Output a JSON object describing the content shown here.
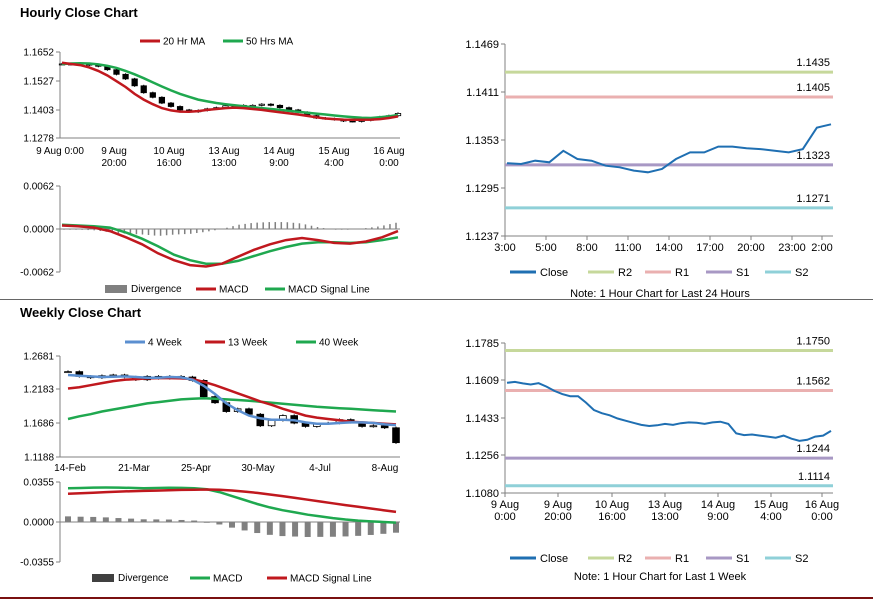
{
  "sections": {
    "hourly_title": "Hourly Close Chart",
    "weekly_title": "Weekly Close Chart"
  },
  "colors": {
    "ma20": "#c0181e",
    "ma50": "#1fa84f",
    "close": "#1f6fb2",
    "r2": "#c6d89b",
    "r1": "#eab0b0",
    "s1": "#a898c4",
    "s2": "#8fd0d8",
    "divergence": "#808080",
    "wk4": "#5b8fd0",
    "wk13": "#c0181e",
    "wk40": "#1fa84f",
    "axis": "#808080"
  },
  "chart_data": [
    {
      "id": "hourly_price",
      "type": "candlestick",
      "legend": [
        "20 Hr MA",
        "50 Hrs MA"
      ],
      "ylim": [
        1.1278,
        1.1652
      ],
      "yticks": [
        "1.1652",
        "1.1527",
        "1.1403",
        "1.1278"
      ],
      "xticks": [
        [
          "9 Aug 0:00",
          ""
        ],
        [
          "9 Aug",
          "20:00"
        ],
        [
          "10 Aug",
          "16:00"
        ],
        [
          "13 Aug",
          "13:00"
        ],
        [
          "14 Aug",
          "9:00"
        ],
        [
          "15 Aug",
          "4:00"
        ],
        [
          "16 Aug",
          "0:00"
        ]
      ],
      "close": [
        1.16,
        1.1598,
        1.1602,
        1.1595,
        1.159,
        1.1575,
        1.1555,
        1.1535,
        1.1505,
        1.1475,
        1.1455,
        1.143,
        1.1415,
        1.14,
        1.1392,
        1.1398,
        1.1405,
        1.141,
        1.1418,
        1.142,
        1.1415,
        1.142,
        1.1425,
        1.142,
        1.141,
        1.14,
        1.139,
        1.1375,
        1.1365,
        1.1362,
        1.1358,
        1.1352,
        1.135,
        1.1355,
        1.1362,
        1.137,
        1.1375,
        1.1385
      ],
      "ma20": [
        1.1605,
        1.16,
        1.1595,
        1.1585,
        1.157,
        1.155,
        1.1525,
        1.15,
        1.147,
        1.1445,
        1.1425,
        1.1408,
        1.1398,
        1.1393,
        1.1392,
        1.1395,
        1.14,
        1.1404,
        1.1408,
        1.141,
        1.1408,
        1.1404,
        1.14,
        1.1395,
        1.139,
        1.1385,
        1.138,
        1.1374,
        1.1368,
        1.1363,
        1.136,
        1.1358,
        1.1357,
        1.1357,
        1.1358,
        1.136,
        1.1365,
        1.1372
      ],
      "ma50": [
        1.16,
        1.1602,
        1.1603,
        1.1602,
        1.1598,
        1.1592,
        1.1583,
        1.157,
        1.1555,
        1.1538,
        1.152,
        1.1502,
        1.1485,
        1.147,
        1.1457,
        1.1445,
        1.1437,
        1.143,
        1.1425,
        1.142,
        1.1416,
        1.1412,
        1.1408,
        1.1404,
        1.14,
        1.1396,
        1.1392,
        1.1388,
        1.1384,
        1.138,
        1.1376,
        1.1372,
        1.1369,
        1.1366,
        1.1365,
        1.1368,
        1.1372,
        1.1378
      ]
    },
    {
      "id": "hourly_macd",
      "type": "line+bar",
      "ylim": [
        -0.0062,
        0.0062
      ],
      "yticks": [
        "0.0062",
        "0.0000",
        "-0.0062"
      ],
      "legend": [
        "Divergence",
        "MACD",
        "MACD Signal Line"
      ],
      "macd": [
        0.0005,
        0.0004,
        0.0002,
        -0.0003,
        -0.0012,
        -0.0022,
        -0.0035,
        -0.0045,
        -0.0052,
        -0.0054,
        -0.005,
        -0.004,
        -0.003,
        -0.0022,
        -0.0016,
        -0.0013,
        -0.0016,
        -0.002,
        -0.0021,
        -0.0018,
        -0.0012,
        -0.0003
      ],
      "signal": [
        0.0006,
        0.0005,
        0.0004,
        0.0002,
        -0.0005,
        -0.0014,
        -0.0025,
        -0.0037,
        -0.0045,
        -0.005,
        -0.005,
        -0.0046,
        -0.0039,
        -0.0032,
        -0.0026,
        -0.0021,
        -0.0019,
        -0.0019,
        -0.002,
        -0.0019,
        -0.0016,
        -0.0012
      ],
      "divergence": [
        -0.0001,
        -0.0001,
        -0.0002,
        -0.0005,
        -0.0007,
        -0.0008,
        -0.001,
        -0.0008,
        -0.0007,
        -0.0004,
        0.0,
        0.0006,
        0.0009,
        0.001,
        0.001,
        0.0008,
        0.0003,
        -0.0001,
        -0.0001,
        0.0001,
        0.0004,
        0.0009
      ]
    },
    {
      "id": "hourly_24h",
      "type": "line",
      "ylim": [
        1.1237,
        1.1469
      ],
      "yticks": [
        "1.1469",
        "1.1411",
        "1.1353",
        "1.1295",
        "1.1237"
      ],
      "xticks": [
        "3:00",
        "5:00",
        "8:00",
        "11:00",
        "14:00",
        "17:00",
        "20:00",
        "23:00",
        "2:00"
      ],
      "levels": {
        "R2": 1.1435,
        "R1": 1.1405,
        "S1": 1.1323,
        "S2": 1.1271
      },
      "level_labels": {
        "R2": "1.1435",
        "R1": "1.1405",
        "S1": "1.1323",
        "S2": "1.1271"
      },
      "close": [
        1.1325,
        1.1324,
        1.1328,
        1.1326,
        1.134,
        1.133,
        1.1328,
        1.1322,
        1.132,
        1.1316,
        1.1314,
        1.1318,
        1.133,
        1.1338,
        1.1338,
        1.1345,
        1.1345,
        1.1343,
        1.1342,
        1.134,
        1.1338,
        1.1342,
        1.1368,
        1.1372
      ],
      "legend": [
        "Close",
        "R2",
        "R1",
        "S1",
        "S2"
      ],
      "note": "Note: 1 Hour Chart for Last 24 Hours"
    },
    {
      "id": "weekly_price",
      "type": "candlestick",
      "legend": [
        "4 Week",
        "13 Week",
        "40 Week"
      ],
      "ylim": [
        1.1188,
        1.2681
      ],
      "yticks": [
        "1.2681",
        "1.2183",
        "1.1686",
        "1.1188"
      ],
      "xticks": [
        "14-Feb",
        "21-Mar",
        "25-Apr",
        "30-May",
        "4-Jul",
        "8-Aug"
      ],
      "close": [
        1.245,
        1.238,
        1.236,
        1.239,
        1.24,
        1.237,
        1.233,
        1.238,
        1.235,
        1.238,
        1.237,
        1.232,
        1.208,
        1.199,
        1.186,
        1.19,
        1.182,
        1.165,
        1.173,
        1.18,
        1.169,
        1.164,
        1.168,
        1.169,
        1.174,
        1.17,
        1.164,
        1.165,
        1.162,
        1.14
      ],
      "wk4": [
        1.24,
        1.239,
        1.238,
        1.237,
        1.2375,
        1.238,
        1.237,
        1.236,
        1.236,
        1.237,
        1.2365,
        1.233,
        1.224,
        1.212,
        1.198,
        1.188,
        1.18,
        1.176,
        1.174,
        1.174,
        1.173,
        1.17,
        1.168,
        1.168,
        1.169,
        1.17,
        1.17,
        1.169,
        1.167,
        1.166
      ],
      "wk13": [
        1.22,
        1.222,
        1.225,
        1.228,
        1.231,
        1.233,
        1.234,
        1.235,
        1.2355,
        1.2355,
        1.235,
        1.234,
        1.23,
        1.225,
        1.219,
        1.213,
        1.207,
        1.201,
        1.196,
        1.19,
        1.185,
        1.18,
        1.177,
        1.175,
        1.173,
        1.171,
        1.17,
        1.169,
        1.168,
        1.167
      ],
      "wk40": [
        1.175,
        1.179,
        1.182,
        1.186,
        1.189,
        1.192,
        1.195,
        1.198,
        1.2,
        1.202,
        1.204,
        1.205,
        1.2055,
        1.205,
        1.204,
        1.203,
        1.202,
        1.2005,
        1.199,
        1.1975,
        1.196,
        1.1945,
        1.193,
        1.192,
        1.191,
        1.19,
        1.189,
        1.188,
        1.187,
        1.186
      ]
    },
    {
      "id": "weekly_macd",
      "type": "line+bar",
      "ylim": [
        -0.0355,
        0.0355
      ],
      "yticks": [
        "0.0355",
        "0.0000",
        "-0.0355"
      ],
      "legend": [
        "Divergence",
        "MACD",
        "MACD Signal Line"
      ],
      "macd": [
        0.03,
        0.0302,
        0.0305,
        0.0306,
        0.0305,
        0.0303,
        0.03,
        0.0302,
        0.0304,
        0.0303,
        0.03,
        0.029,
        0.0265,
        0.023,
        0.0195,
        0.016,
        0.013,
        0.0105,
        0.0085,
        0.0065,
        0.005,
        0.0035,
        0.0022,
        0.0012,
        0.0005,
        0.0,
        -0.0005
      ],
      "signal": [
        0.025,
        0.0255,
        0.026,
        0.0265,
        0.027,
        0.0273,
        0.0276,
        0.0279,
        0.0282,
        0.0285,
        0.0287,
        0.0288,
        0.0287,
        0.028,
        0.027,
        0.0258,
        0.0244,
        0.023,
        0.0214,
        0.0198,
        0.0182,
        0.0166,
        0.015,
        0.0135,
        0.012,
        0.0105,
        0.009
      ],
      "divergence": [
        0.005,
        0.0047,
        0.0045,
        0.0041,
        0.0035,
        0.003,
        0.0024,
        0.0023,
        0.0022,
        0.0018,
        0.0013,
        0.0002,
        -0.0022,
        -0.005,
        -0.0075,
        -0.0098,
        -0.0114,
        -0.0125,
        -0.0129,
        -0.0133,
        -0.0132,
        -0.0131,
        -0.0128,
        -0.0123,
        -0.0115,
        -0.0105,
        -0.0095
      ]
    },
    {
      "id": "weekly_1w",
      "type": "line",
      "ylim": [
        1.108,
        1.1785
      ],
      "yticks": [
        "1.1785",
        "1.1609",
        "1.1433",
        "1.1256",
        "1.1080"
      ],
      "xticks": [
        [
          "9 Aug",
          "0:00"
        ],
        [
          "9 Aug",
          "20:00"
        ],
        [
          "10 Aug",
          "16:00"
        ],
        [
          "13 Aug",
          "13:00"
        ],
        [
          "14 Aug",
          "9:00"
        ],
        [
          "15 Aug",
          "4:00"
        ],
        [
          "16 Aug",
          "0:00"
        ]
      ],
      "levels": {
        "R2": 1.175,
        "R1": 1.1562,
        "S1": 1.1244,
        "S2": 1.1114
      },
      "level_labels": {
        "R2": "1.1750",
        "R1": "1.1562",
        "S1": "1.1244",
        "S2": "1.1114"
      },
      "close": [
        1.1598,
        1.1602,
        1.1595,
        1.159,
        1.1596,
        1.158,
        1.156,
        1.1545,
        1.1535,
        1.1535,
        1.1505,
        1.147,
        1.1455,
        1.1445,
        1.143,
        1.142,
        1.141,
        1.14,
        1.1395,
        1.1398,
        1.1405,
        1.14,
        1.1408,
        1.1412,
        1.141,
        1.1405,
        1.1412,
        1.1415,
        1.1405,
        1.136,
        1.1352,
        1.1355,
        1.135,
        1.1345,
        1.134,
        1.135,
        1.1335,
        1.1325,
        1.133,
        1.1345,
        1.135,
        1.1372
      ],
      "legend": [
        "Close",
        "R2",
        "R1",
        "S1",
        "S2"
      ],
      "note": "Note: 1 Hour Chart for Last 1 Week"
    }
  ]
}
